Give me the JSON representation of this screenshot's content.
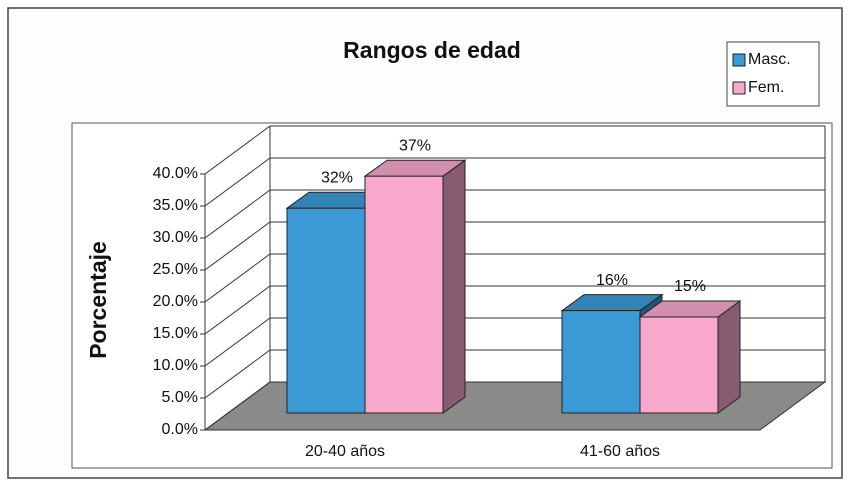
{
  "chart_data": {
    "type": "bar3d",
    "title": "Rangos de edad",
    "y_label": "Porcentaje",
    "categories": [
      "20-40 años",
      "41-60 años"
    ],
    "series": [
      {
        "name": "Masc.",
        "color": "#3b9ad6",
        "values": [
          32,
          16
        ],
        "value_labels": [
          "32%",
          "16%"
        ]
      },
      {
        "name": "Fem.",
        "color": "#f7a8cb",
        "values": [
          37,
          15
        ],
        "value_labels": [
          "37%",
          "15%"
        ]
      }
    ],
    "ylim": [
      0,
      40
    ],
    "yticks": [
      {
        "value": 0,
        "label": "0.0%"
      },
      {
        "value": 5,
        "label": "5.0%"
      },
      {
        "value": 10,
        "label": "10.0%"
      },
      {
        "value": 15,
        "label": "15.0%"
      },
      {
        "value": 20,
        "label": "20.0%"
      },
      {
        "value": 25,
        "label": "25.0%"
      },
      {
        "value": 30,
        "label": "30.0%"
      },
      {
        "value": 35,
        "label": "35.0%"
      },
      {
        "value": 40,
        "label": "40.0%"
      }
    ],
    "grid": true,
    "legend": "top-right"
  }
}
